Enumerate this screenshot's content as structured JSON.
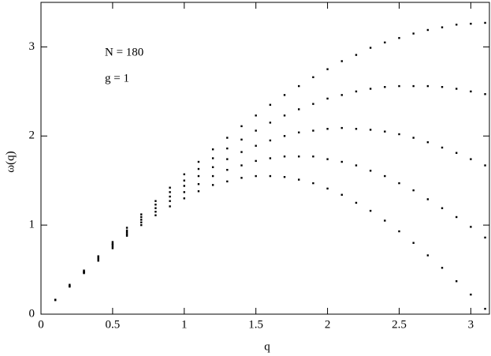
{
  "chart_data": {
    "type": "scatter",
    "xlabel": "q",
    "ylabel": "ω(q)",
    "annotations": [
      "N = 180",
      "g = 1"
    ],
    "x": [
      0.1,
      0.2,
      0.3,
      0.4,
      0.5,
      0.6,
      0.7,
      0.8,
      0.9,
      1.0,
      1.1,
      1.2,
      1.3,
      1.4,
      1.5,
      1.6,
      1.7,
      1.8,
      1.9,
      2.0,
      2.1,
      2.2,
      2.3,
      2.4,
      2.5,
      2.6,
      2.7,
      2.8,
      2.9,
      3.0,
      3.1
    ],
    "series": [
      {
        "color": "#000000",
        "values": [
          0.16,
          0.31,
          0.46,
          0.6,
          0.74,
          0.88,
          1.0,
          1.11,
          1.21,
          1.3,
          1.38,
          1.45,
          1.49,
          1.53,
          1.55,
          1.55,
          1.54,
          1.51,
          1.47,
          1.41,
          1.34,
          1.25,
          1.16,
          1.05,
          0.93,
          0.8,
          0.66,
          0.52,
          0.37,
          0.22,
          0.06
        ]
      },
      {
        "color": "#000000",
        "values": [
          0.16,
          0.31,
          0.47,
          0.62,
          0.76,
          0.9,
          1.03,
          1.15,
          1.27,
          1.37,
          1.46,
          1.55,
          1.62,
          1.67,
          1.72,
          1.75,
          1.77,
          1.77,
          1.77,
          1.74,
          1.71,
          1.67,
          1.61,
          1.55,
          1.47,
          1.39,
          1.29,
          1.19,
          1.09,
          0.98,
          0.86
        ]
      },
      {
        "color": "#000000",
        "values": [
          0.16,
          0.32,
          0.47,
          0.63,
          0.78,
          0.92,
          1.06,
          1.19,
          1.32,
          1.44,
          1.55,
          1.65,
          1.74,
          1.82,
          1.89,
          1.95,
          2.0,
          2.04,
          2.06,
          2.08,
          2.09,
          2.08,
          2.07,
          2.05,
          2.02,
          1.98,
          1.93,
          1.87,
          1.81,
          1.74,
          1.67
        ]
      },
      {
        "color": "#000000",
        "values": [
          0.16,
          0.32,
          0.48,
          0.64,
          0.79,
          0.94,
          1.09,
          1.23,
          1.37,
          1.5,
          1.63,
          1.75,
          1.86,
          1.96,
          2.06,
          2.15,
          2.23,
          2.3,
          2.36,
          2.42,
          2.46,
          2.5,
          2.53,
          2.55,
          2.56,
          2.56,
          2.56,
          2.55,
          2.53,
          2.5,
          2.47
        ]
      },
      {
        "color": "#000000",
        "values": [
          0.16,
          0.33,
          0.49,
          0.65,
          0.81,
          0.97,
          1.12,
          1.27,
          1.42,
          1.57,
          1.71,
          1.85,
          1.98,
          2.11,
          2.23,
          2.35,
          2.46,
          2.56,
          2.66,
          2.75,
          2.84,
          2.91,
          2.99,
          3.05,
          3.1,
          3.15,
          3.19,
          3.22,
          3.25,
          3.26,
          3.27
        ]
      }
    ],
    "xlim": [
      0,
      3.13
    ],
    "ylim": [
      0,
      3.5
    ],
    "xticks": [
      0,
      0.5,
      1,
      1.5,
      2,
      2.5,
      3
    ],
    "yticks": [
      0,
      1,
      2,
      3
    ],
    "grid": false
  }
}
